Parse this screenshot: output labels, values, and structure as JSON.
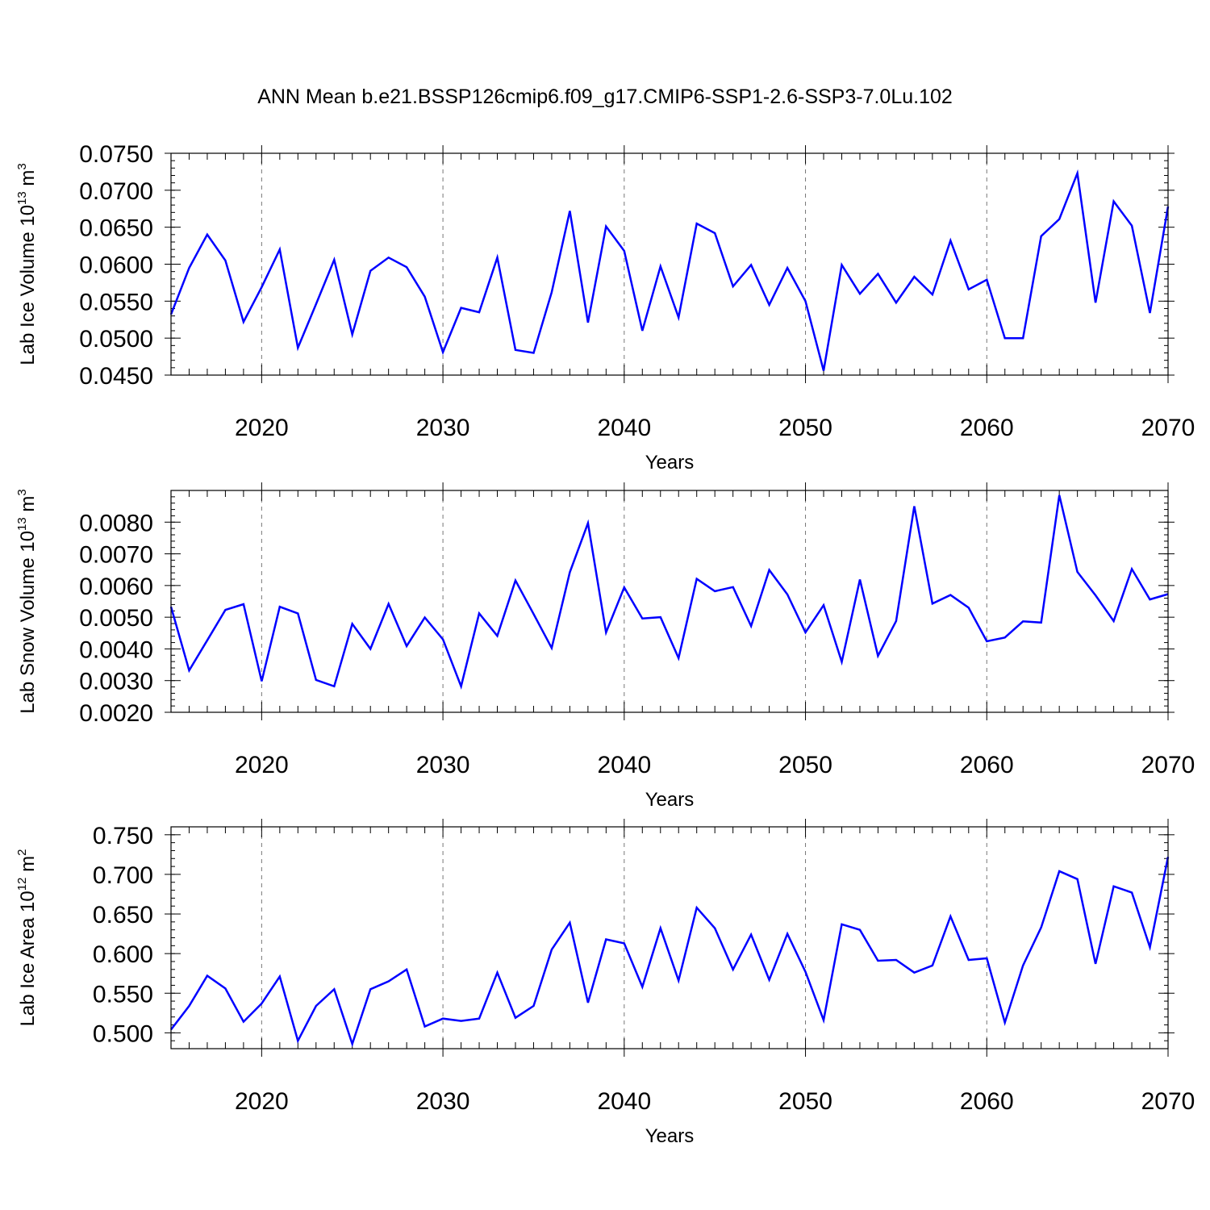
{
  "figure": {
    "title": "ANN Mean b.e21.BSSP126cmip6.f09_g17.CMIP6-SSP1-2.6-SSP3-7.0Lu.102"
  },
  "chart_data": [
    {
      "type": "line",
      "xlabel": "Years",
      "ylabel_text": "Lab Ice Volume 10",
      "ylabel_exp": "13",
      "ylabel_unit": " m",
      "ylabel_unit_exp": "3",
      "xlim": [
        2015,
        2070
      ],
      "ylim": [
        0.045,
        0.075
      ],
      "xticks": [
        2020,
        2030,
        2040,
        2050,
        2060,
        2070
      ],
      "yticks": [
        "0.0450",
        "0.0500",
        "0.0550",
        "0.0600",
        "0.0650",
        "0.0700",
        "0.0750"
      ],
      "ytick_values": [
        0.045,
        0.05,
        0.055,
        0.06,
        0.065,
        0.07,
        0.075
      ],
      "ytick_minor_step": 0.001,
      "grid": "vertical dashed at major x ticks",
      "line_color": "#0000ff",
      "x": [
        2015,
        2016,
        2017,
        2018,
        2019,
        2020,
        2021,
        2022,
        2023,
        2024,
        2025,
        2026,
        2027,
        2028,
        2029,
        2030,
        2031,
        2032,
        2033,
        2034,
        2035,
        2036,
        2037,
        2038,
        2039,
        2040,
        2041,
        2042,
        2043,
        2044,
        2045,
        2046,
        2047,
        2048,
        2049,
        2050,
        2051,
        2052,
        2053,
        2054,
        2055,
        2056,
        2057,
        2058,
        2059,
        2060,
        2061,
        2062,
        2063,
        2064,
        2065,
        2066,
        2067,
        2068,
        2069,
        2070
      ],
      "y": [
        0.0532,
        0.0595,
        0.064,
        0.0605,
        0.0522,
        0.0569,
        0.062,
        0.0487,
        0.0546,
        0.0606,
        0.0505,
        0.0591,
        0.0609,
        0.0596,
        0.0556,
        0.0481,
        0.0541,
        0.0535,
        0.0609,
        0.0484,
        0.048,
        0.0562,
        0.0672,
        0.0521,
        0.0651,
        0.0618,
        0.051,
        0.0597,
        0.0528,
        0.0655,
        0.0642,
        0.057,
        0.0599,
        0.0545,
        0.0595,
        0.055,
        0.0456,
        0.0599,
        0.056,
        0.0587,
        0.0548,
        0.0583,
        0.0559,
        0.0632,
        0.0566,
        0.0579,
        0.05,
        0.05,
        0.0638,
        0.0661,
        0.0723,
        0.0548,
        0.0685,
        0.0652,
        0.0534,
        0.0678
      ]
    },
    {
      "type": "line",
      "xlabel": "Years",
      "ylabel_text": "Lab Snow Volume 10",
      "ylabel_exp": "13",
      "ylabel_unit": " m",
      "ylabel_unit_exp": "3",
      "xlim": [
        2015,
        2070
      ],
      "ylim": [
        0.002,
        0.009
      ],
      "xticks": [
        2020,
        2030,
        2040,
        2050,
        2060,
        2070
      ],
      "yticks": [
        "0.0020",
        "0.0030",
        "0.0040",
        "0.0050",
        "0.0060",
        "0.0070",
        "0.0080"
      ],
      "ytick_values": [
        0.002,
        0.003,
        0.004,
        0.005,
        0.006,
        0.007,
        0.008
      ],
      "ytick_minor_step": 0.0002,
      "grid": "vertical dashed at major x ticks",
      "line_color": "#0000ff",
      "x": [
        2015,
        2016,
        2017,
        2018,
        2019,
        2020,
        2021,
        2022,
        2023,
        2024,
        2025,
        2026,
        2027,
        2028,
        2029,
        2030,
        2031,
        2032,
        2033,
        2034,
        2035,
        2036,
        2037,
        2038,
        2039,
        2040,
        2041,
        2042,
        2043,
        2044,
        2045,
        2046,
        2047,
        2048,
        2049,
        2050,
        2051,
        2052,
        2053,
        2054,
        2055,
        2056,
        2057,
        2058,
        2059,
        2060,
        2061,
        2062,
        2063,
        2064,
        2065,
        2066,
        2067,
        2068,
        2069,
        2070
      ],
      "y": [
        0.00533,
        0.00332,
        0.00427,
        0.00523,
        0.00541,
        0.00298,
        0.00533,
        0.00512,
        0.00302,
        0.00282,
        0.00479,
        0.004,
        0.00542,
        0.00409,
        0.00499,
        0.0043,
        0.00282,
        0.00512,
        0.00441,
        0.00616,
        0.0051,
        0.00403,
        0.00642,
        0.00797,
        0.00452,
        0.00594,
        0.00496,
        0.005,
        0.00371,
        0.00621,
        0.00582,
        0.00595,
        0.00472,
        0.00649,
        0.00572,
        0.00452,
        0.00538,
        0.00359,
        0.00619,
        0.00378,
        0.00488,
        0.0085,
        0.00543,
        0.0057,
        0.0053,
        0.00424,
        0.00436,
        0.00487,
        0.00483,
        0.00885,
        0.00643,
        0.00569,
        0.00488,
        0.00652,
        0.00556,
        0.00573
      ]
    },
    {
      "type": "line",
      "xlabel": "Years",
      "ylabel_text": "Lab Ice Area 10",
      "ylabel_exp": "12",
      "ylabel_unit": " m",
      "ylabel_unit_exp": "2",
      "xlim": [
        2015,
        2070
      ],
      "ylim": [
        0.48,
        0.76
      ],
      "xticks": [
        2020,
        2030,
        2040,
        2050,
        2060,
        2070
      ],
      "yticks": [
        "0.500",
        "0.550",
        "0.600",
        "0.650",
        "0.700",
        "0.750"
      ],
      "ytick_values": [
        0.5,
        0.55,
        0.6,
        0.65,
        0.7,
        0.75
      ],
      "ytick_minor_step": 0.01,
      "grid": "vertical dashed at major x ticks",
      "line_color": "#0000ff",
      "x": [
        2015,
        2016,
        2017,
        2018,
        2019,
        2020,
        2021,
        2022,
        2023,
        2024,
        2025,
        2026,
        2027,
        2028,
        2029,
        2030,
        2031,
        2032,
        2033,
        2034,
        2035,
        2036,
        2037,
        2038,
        2039,
        2040,
        2041,
        2042,
        2043,
        2044,
        2045,
        2046,
        2047,
        2048,
        2049,
        2050,
        2051,
        2052,
        2053,
        2054,
        2055,
        2056,
        2057,
        2058,
        2059,
        2060,
        2061,
        2062,
        2063,
        2064,
        2065,
        2066,
        2067,
        2068,
        2069,
        2070
      ],
      "y": [
        0.504,
        0.534,
        0.572,
        0.556,
        0.514,
        0.537,
        0.571,
        0.49,
        0.534,
        0.555,
        0.486,
        0.555,
        0.565,
        0.58,
        0.508,
        0.518,
        0.515,
        0.518,
        0.576,
        0.519,
        0.534,
        0.605,
        0.639,
        0.538,
        0.618,
        0.613,
        0.558,
        0.632,
        0.566,
        0.658,
        0.632,
        0.58,
        0.624,
        0.567,
        0.625,
        0.577,
        0.516,
        0.637,
        0.63,
        0.591,
        0.592,
        0.576,
        0.585,
        0.647,
        0.592,
        0.594,
        0.513,
        0.585,
        0.633,
        0.704,
        0.694,
        0.587,
        0.685,
        0.677,
        0.608,
        0.722
      ]
    }
  ]
}
